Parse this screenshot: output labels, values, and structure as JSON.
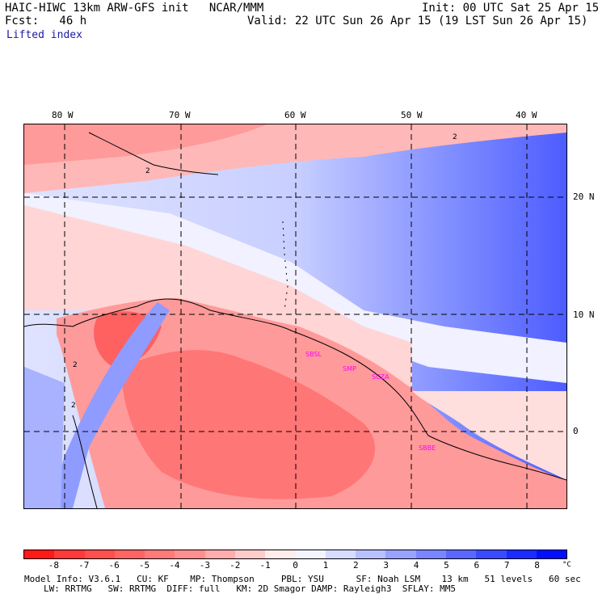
{
  "header": {
    "title": "HAIC-HIWC 13km ARW-GFS init   NCAR/MMM",
    "init": "Init: 00 UTC Sat 25 Apr 15",
    "fcst": "Fcst:   46 h",
    "valid": "Valid: 22 UTC Sun 26 Apr 15 (19 LST Sun 26 Apr 15)",
    "field": "Lifted index"
  },
  "map": {
    "longitude_labels": [
      "80 W",
      "70 W",
      "60 W",
      "50 W",
      "40 W"
    ],
    "latitude_labels": [
      "20 N",
      "10 N",
      "0"
    ],
    "contour_labels": [
      "2",
      "2",
      "2",
      "2"
    ],
    "places": [
      "SBSL",
      "SMP",
      "SCZA",
      "SBBE"
    ]
  },
  "colorbar": {
    "tick_labels": [
      "-8",
      "-7",
      "-6",
      "-5",
      "-4",
      "-3",
      "-2",
      "-1",
      "0",
      "1",
      "2",
      "3",
      "4",
      "5",
      "6",
      "7",
      "8"
    ],
    "unit": "°C",
    "colors": [
      "#ff1a1a",
      "#ff3a3a",
      "#ff4f4f",
      "#ff6565",
      "#ff7a7a",
      "#ff9090",
      "#ffadad",
      "#ffcccc",
      "#ffecec",
      "#f4f4ff",
      "#d8dcff",
      "#b8c0ff",
      "#98a3ff",
      "#7a86ff",
      "#5a68ff",
      "#3a4bff",
      "#1a2cff",
      "#0010ff"
    ]
  },
  "footer": {
    "line1": "Model Info: V3.6.1   CU: KF    MP: Thompson     PBL: YSU      SF: Noah LSM    13 km   51 levels   60 sec",
    "line2": "LW: RRTMG   SW: RRTMG  DIFF: full   KM: 2D Smagor DAMP: Rayleigh3  SFLAY: MM5"
  }
}
